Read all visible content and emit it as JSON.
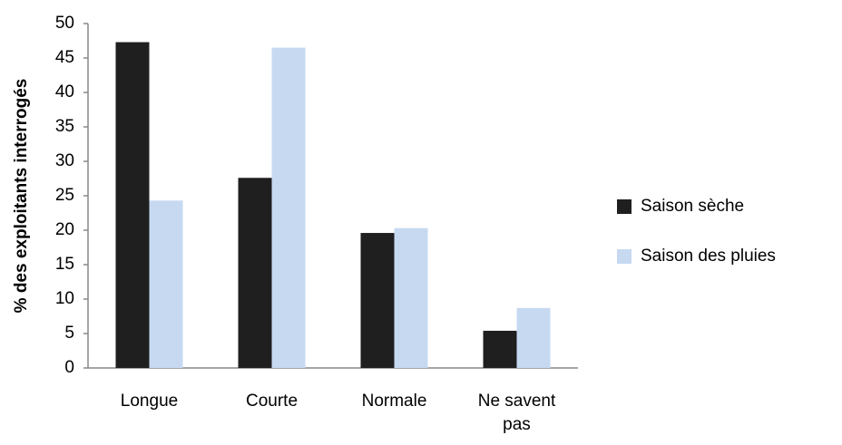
{
  "chart_data": {
    "type": "bar",
    "y_label": "% des exploitants interrogés",
    "categories": [
      "Longue",
      "Courte",
      "Normale",
      "Ne savent pas"
    ],
    "series": [
      {
        "name": "Saison sèche",
        "color": "#1f1f1f",
        "values": [
          47.3,
          27.6,
          19.6,
          5.4
        ]
      },
      {
        "name": "Saison des pluies",
        "color": "#c6d9f1",
        "values": [
          24.3,
          46.5,
          20.3,
          8.7
        ]
      }
    ],
    "ylim": [
      0,
      50
    ],
    "yticks": [
      0,
      5,
      10,
      15,
      20,
      25,
      30,
      35,
      40,
      45,
      50
    ],
    "grid": false,
    "legend": "right"
  }
}
